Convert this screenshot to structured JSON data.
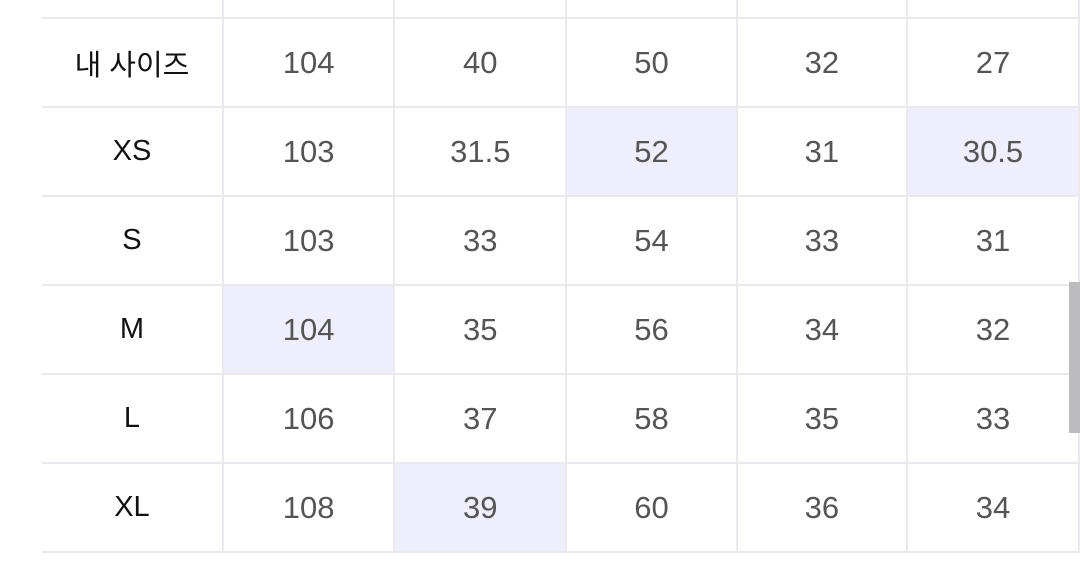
{
  "size_table": {
    "rows": [
      {
        "label": "",
        "values": [
          "",
          "",
          "",
          "",
          ""
        ],
        "highlight": []
      },
      {
        "label": "내 사이즈",
        "values": [
          "104",
          "40",
          "50",
          "32",
          "27"
        ],
        "highlight": []
      },
      {
        "label": "XS",
        "values": [
          "103",
          "31.5",
          "52",
          "31",
          "30.5"
        ],
        "highlight": [
          2,
          4
        ]
      },
      {
        "label": "S",
        "values": [
          "103",
          "33",
          "54",
          "33",
          "31"
        ],
        "highlight": []
      },
      {
        "label": "M",
        "values": [
          "104",
          "35",
          "56",
          "34",
          "32"
        ],
        "highlight": [
          0
        ]
      },
      {
        "label": "L",
        "values": [
          "106",
          "37",
          "58",
          "35",
          "33"
        ],
        "highlight": []
      },
      {
        "label": "XL",
        "values": [
          "108",
          "39",
          "60",
          "36",
          "34"
        ],
        "highlight": [
          1
        ]
      }
    ]
  },
  "colors": {
    "highlight": "#eeeefc",
    "grid": "#ebe9ee",
    "value_text": "#555555",
    "label_text": "#111111"
  }
}
